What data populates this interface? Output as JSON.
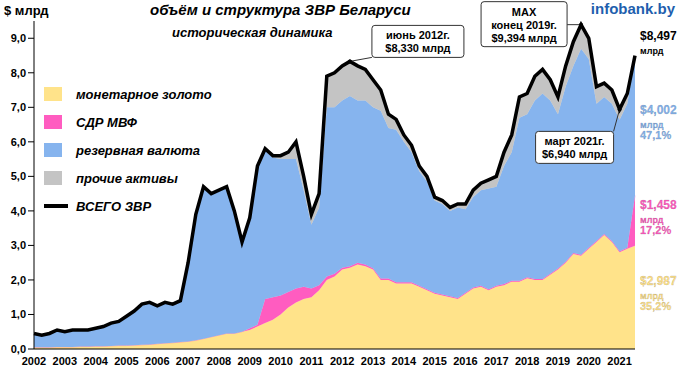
{
  "chart_data": {
    "type": "area",
    "stacked": true,
    "title": "объём и структура ЗВР Беларуси",
    "subtitle": "историческая динамика",
    "y_label": "$ млрд",
    "source": "infobank.by",
    "grid": false,
    "legend": "upper left",
    "categories": [
      "2002",
      null,
      null,
      null,
      "2003",
      null,
      null,
      null,
      "2004",
      null,
      null,
      null,
      "2005",
      null,
      null,
      null,
      "2006",
      null,
      null,
      null,
      "2007",
      null,
      null,
      null,
      "2008",
      null,
      null,
      null,
      "2009",
      null,
      null,
      null,
      "2010",
      null,
      null,
      null,
      "2011",
      null,
      null,
      null,
      "2012",
      null,
      null,
      null,
      "2013",
      null,
      null,
      null,
      "2014",
      null,
      null,
      null,
      "2015",
      null,
      null,
      null,
      "2016",
      null,
      null,
      null,
      "2017",
      null,
      null,
      null,
      "2018",
      null,
      null,
      null,
      "2019",
      null,
      null,
      null,
      "2020",
      null,
      null,
      null,
      "2021",
      null,
      null
    ],
    "series": [
      {
        "name": "монетарное золото",
        "color": "#FFE38A",
        "values": [
          0.05,
          0.05,
          0.05,
          0.06,
          0.06,
          0.06,
          0.07,
          0.07,
          0.08,
          0.08,
          0.09,
          0.1,
          0.1,
          0.11,
          0.12,
          0.13,
          0.15,
          0.17,
          0.18,
          0.2,
          0.22,
          0.25,
          0.3,
          0.35,
          0.4,
          0.45,
          0.45,
          0.5,
          0.55,
          0.65,
          0.75,
          0.85,
          1.0,
          1.2,
          1.35,
          1.45,
          1.5,
          1.7,
          2.0,
          2.1,
          2.3,
          2.35,
          2.45,
          2.4,
          2.3,
          2.0,
          2.0,
          1.9,
          1.9,
          1.9,
          1.8,
          1.7,
          1.6,
          1.55,
          1.5,
          1.45,
          1.6,
          1.75,
          1.8,
          1.7,
          1.8,
          1.85,
          1.95,
          1.95,
          2.05,
          2.0,
          2.0,
          2.15,
          2.3,
          2.5,
          2.75,
          2.7,
          2.9,
          3.1,
          3.3,
          3.1,
          2.8,
          2.9,
          2.987
        ]
      },
      {
        "name": "СДР МВФ",
        "color": "#FF5CC0",
        "values": [
          0,
          0,
          0,
          0,
          0,
          0,
          0,
          0,
          0,
          0,
          0,
          0,
          0,
          0,
          0,
          0,
          0,
          0,
          0,
          0,
          0,
          0,
          0,
          0,
          0,
          0,
          0,
          0,
          0.05,
          0.05,
          0.7,
          0.65,
          0.55,
          0.45,
          0.4,
          0.35,
          0.25,
          0.15,
          0.1,
          0.08,
          0.05,
          0.05,
          0.05,
          0.05,
          0.04,
          0.04,
          0.04,
          0.03,
          0.03,
          0.03,
          0.03,
          0.03,
          0.03,
          0.03,
          0.03,
          0.03,
          0.03,
          0.03,
          0.03,
          0.03,
          0.03,
          0.03,
          0.03,
          0.03,
          0.03,
          0.03,
          0.03,
          0.03,
          0.03,
          0.03,
          0.03,
          0.03,
          0.03,
          0.03,
          0.03,
          0.03,
          0.03,
          0.03,
          1.458
        ]
      },
      {
        "name": "резервная валюта",
        "color": "#86B4EE",
        "values": [
          0.38,
          0.33,
          0.38,
          0.47,
          0.42,
          0.47,
          0.46,
          0.46,
          0.5,
          0.55,
          0.64,
          0.68,
          0.83,
          0.97,
          1.16,
          1.2,
          1.08,
          1.16,
          1.1,
          1.18,
          2.25,
          3.62,
          4.37,
          4.12,
          4.17,
          4.22,
          3.52,
          2.57,
          3.15,
          4.55,
          4.3,
          4.05,
          3.95,
          3.85,
          3.75,
          2.8,
          1.85,
          2.25,
          4.9,
          4.82,
          4.85,
          4.93,
          4.7,
          4.75,
          4.66,
          4.86,
          4.36,
          4.42,
          4.07,
          3.77,
          3.32,
          3.12,
          2.67,
          2.62,
          2.47,
          2.62,
          2.42,
          2.62,
          2.77,
          2.92,
          2.87,
          3.42,
          3.72,
          4.72,
          4.72,
          5.17,
          5.37,
          5.02,
          4.47,
          5.07,
          5.42,
          5.964,
          5.47,
          3.97,
          3.97,
          3.97,
          3.81,
          4.17,
          4.002
        ]
      },
      {
        "name": "прочие активы",
        "color": "#C4C4C4",
        "values": [
          0.02,
          0.02,
          0.02,
          0.02,
          0.02,
          0.02,
          0.02,
          0.02,
          0.02,
          0.02,
          0.02,
          0.02,
          0.02,
          0.02,
          0.02,
          0.02,
          0.02,
          0.02,
          0.02,
          0.02,
          0.03,
          0.03,
          0.03,
          0.03,
          0.03,
          0.03,
          0.03,
          0.03,
          0.05,
          0.05,
          0.05,
          0.05,
          0.1,
          0.2,
          0.5,
          0.4,
          0.3,
          0.4,
          0.9,
          1.0,
          1.0,
          1.0,
          1.0,
          0.9,
          0.8,
          0.6,
          0.4,
          0.3,
          0.2,
          0.2,
          0.15,
          0.15,
          0.1,
          0.1,
          0.1,
          0.1,
          0.15,
          0.2,
          0.2,
          0.25,
          0.3,
          0.4,
          0.5,
          0.6,
          0.6,
          0.7,
          0.7,
          0.6,
          0.5,
          0.6,
          0.7,
          0.7,
          0.6,
          0.5,
          0.4,
          0.4,
          0.3,
          0.3,
          0.05
        ]
      },
      {
        "name": "ВСЕГО ЗВР",
        "type": "line",
        "color": "#000000",
        "values": [
          0.45,
          0.4,
          0.45,
          0.55,
          0.5,
          0.55,
          0.55,
          0.55,
          0.6,
          0.65,
          0.75,
          0.8,
          0.95,
          1.1,
          1.3,
          1.35,
          1.25,
          1.35,
          1.3,
          1.4,
          2.5,
          3.9,
          4.7,
          4.5,
          4.6,
          4.7,
          4.0,
          3.1,
          3.8,
          5.3,
          5.8,
          5.6,
          5.6,
          5.7,
          6.0,
          5.0,
          3.9,
          4.5,
          7.9,
          8.0,
          8.2,
          8.33,
          8.2,
          8.1,
          7.8,
          7.5,
          6.8,
          6.65,
          6.2,
          5.9,
          5.3,
          5.0,
          4.4,
          4.3,
          4.1,
          4.2,
          4.2,
          4.6,
          4.8,
          4.9,
          5.0,
          5.7,
          6.2,
          7.3,
          7.4,
          7.9,
          8.1,
          7.8,
          7.3,
          8.2,
          8.9,
          9.394,
          9.0,
          7.6,
          7.7,
          7.5,
          6.94,
          7.4,
          8.497
        ]
      }
    ],
    "ylim": [
      0,
      9.5
    ],
    "yticks": [
      {
        "value": 0,
        "label": "0,0"
      },
      {
        "value": 1,
        "label": "1,0"
      },
      {
        "value": 2,
        "label": "2,0"
      },
      {
        "value": 3,
        "label": "3,0"
      },
      {
        "value": 4,
        "label": "4,0"
      },
      {
        "value": 5,
        "label": "5,0"
      },
      {
        "value": 6,
        "label": "6,0"
      },
      {
        "value": 7,
        "label": "7,0"
      },
      {
        "value": 8,
        "label": "8,0"
      },
      {
        "value": 9,
        "label": "9,0"
      }
    ],
    "annotations": [
      {
        "text": [
          "июнь 2012г.",
          "$8,330 млрд"
        ],
        "value": 8.33
      },
      {
        "text": [
          "MAX",
          "конец 2019г.",
          "$9,394 млрд"
        ],
        "value": 9.394
      },
      {
        "text": [
          "март 2021г.",
          "$6,940 млрд"
        ],
        "value": 6.94
      }
    ],
    "end_labels": [
      {
        "series": "ВСЕГО ЗВР",
        "text": [
          "$8,497",
          "млрд"
        ]
      },
      {
        "series": "резервная валюта",
        "text": [
          "$4,002",
          "млрд",
          "47,1%"
        ]
      },
      {
        "series": "СДР МВФ",
        "text": [
          "$1,458",
          "млрд",
          "17,2%"
        ]
      },
      {
        "series": "монетарное золото",
        "text": [
          "$2,987",
          "млрд",
          "35,2%"
        ]
      }
    ]
  }
}
